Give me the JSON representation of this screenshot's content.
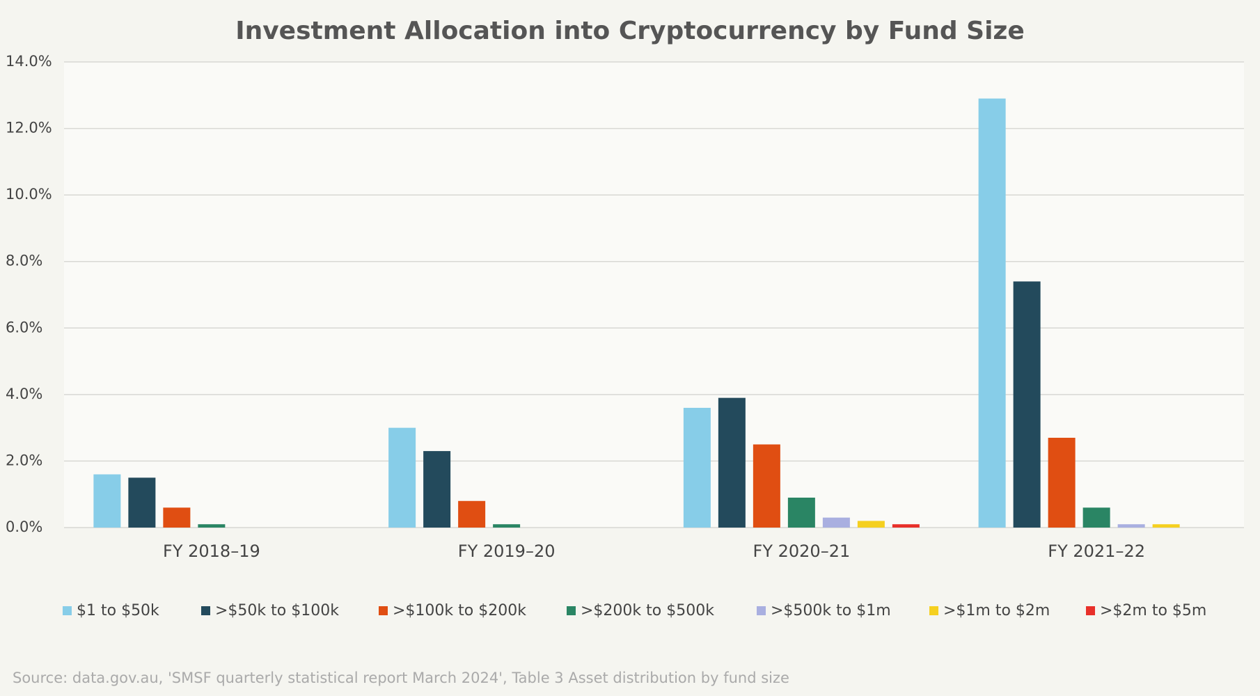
{
  "chart_data": {
    "type": "bar",
    "title": "Investment Allocation into Cryptocurrency by Fund Size",
    "categories": [
      "FY 2018–19",
      "FY 2019–20",
      "FY 2020–21",
      "FY 2021–22"
    ],
    "series": [
      {
        "name": "$1 to $50k",
        "color": "#87cde8",
        "values": [
          1.6,
          3.0,
          3.6,
          12.9
        ]
      },
      {
        "name": ">$50k to $100k",
        "color": "#234a5c",
        "values": [
          1.5,
          2.3,
          3.9,
          7.4
        ]
      },
      {
        "name": ">$100k to $200k",
        "color": "#e04e12",
        "values": [
          0.6,
          0.8,
          2.5,
          2.7
        ]
      },
      {
        "name": ">$200k to $500k",
        "color": "#2a8564",
        "values": [
          0.1,
          0.1,
          0.9,
          0.6
        ]
      },
      {
        "name": ">$500k to $1m",
        "color": "#a9afe0",
        "values": [
          0,
          0,
          0.3,
          0.1
        ]
      },
      {
        "name": ">$1m to $2m",
        "color": "#f5d020",
        "values": [
          0,
          0,
          0.2,
          0.1
        ]
      },
      {
        "name": ">$2m to $5m",
        "color": "#e8302a",
        "values": [
          0,
          0,
          0.1,
          0
        ]
      }
    ],
    "ylim": [
      0,
      14
    ],
    "yticks": [
      {
        "value": 0,
        "label": "0.0%"
      },
      {
        "value": 2,
        "label": "2.0%"
      },
      {
        "value": 4,
        "label": "4.0%"
      },
      {
        "value": 6,
        "label": "6.0%"
      },
      {
        "value": 8,
        "label": "8.0%"
      },
      {
        "value": 10,
        "label": "10.0%"
      },
      {
        "value": 12,
        "label": "12.0%"
      },
      {
        "value": 14,
        "label": "14.0%"
      }
    ],
    "grid": true,
    "legend": "bottom",
    "source": "Source: data.gov.au, 'SMSF quarterly statistical report March 2024', Table 3 Asset distribution by fund size"
  }
}
